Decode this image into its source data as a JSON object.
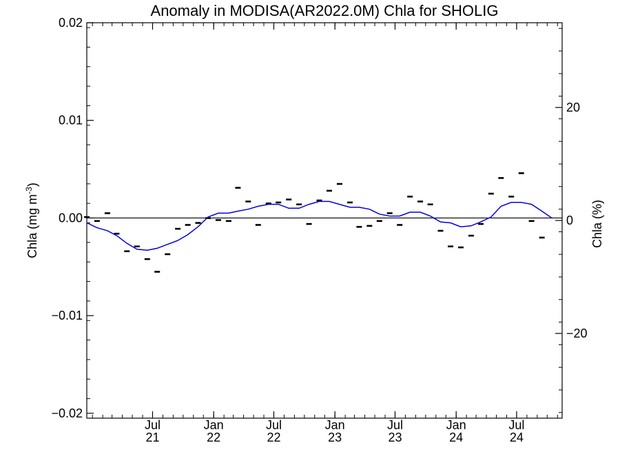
{
  "chart_data": {
    "type": "line+scatter",
    "title": "Anomaly in MODISA(AR2022.0M) Chla for SHOLIG",
    "ylabel_left": {
      "main": "Chla (mg m",
      "sup": "-3",
      "close": ")"
    },
    "ylabel_right": "Chla (%)",
    "x_range": [
      "2020-12-15",
      "2024-11-15"
    ],
    "y_left_range": [
      -0.0205,
      0.02
    ],
    "y_right_range": [
      -35,
      35
    ],
    "grid": false,
    "x_ticks": [
      {
        "date": "2021-07-01",
        "month": "Jul",
        "year": "21"
      },
      {
        "date": "2022-01-01",
        "month": "Jan",
        "year": "22"
      },
      {
        "date": "2022-07-01",
        "month": "Jul",
        "year": "22"
      },
      {
        "date": "2023-01-01",
        "month": "Jan",
        "year": "23"
      },
      {
        "date": "2023-07-01",
        "month": "Jul",
        "year": "23"
      },
      {
        "date": "2024-01-01",
        "month": "Jan",
        "year": "24"
      },
      {
        "date": "2024-07-01",
        "month": "Jul",
        "year": "24"
      }
    ],
    "y_left_ticks": [
      {
        "value": 0.02,
        "label": "0.02"
      },
      {
        "value": 0.01,
        "label": "0.01"
      },
      {
        "value": 0.0,
        "label": "0.00"
      },
      {
        "value": -0.01,
        "label": "−0.01"
      },
      {
        "value": -0.02,
        "label": "−0.02"
      }
    ],
    "y_right_ticks": [
      {
        "value": 20,
        "label": "20"
      },
      {
        "value": 0,
        "label": "0"
      },
      {
        "value": -20,
        "label": "−20"
      }
    ],
    "reference_line": 0,
    "series": [
      {
        "kind": "points",
        "color": "#000000",
        "points": [
          [
            "2020-12-15",
            0.0001
          ],
          [
            "2021-01-15",
            -0.0003
          ],
          [
            "2021-02-15",
            0.0005
          ],
          [
            "2021-03-15",
            -0.0016
          ],
          [
            "2021-04-15",
            -0.0034
          ],
          [
            "2021-05-15",
            -0.0029
          ],
          [
            "2021-06-15",
            -0.0042
          ],
          [
            "2021-07-15",
            -0.0055
          ],
          [
            "2021-08-15",
            -0.0037
          ],
          [
            "2021-09-15",
            -0.0011
          ],
          [
            "2021-10-15",
            -0.0007
          ],
          [
            "2021-11-15",
            -0.0005
          ],
          [
            "2021-12-15",
            0.0
          ],
          [
            "2022-01-15",
            -0.0002
          ],
          [
            "2022-02-15",
            -0.0003
          ],
          [
            "2022-03-15",
            0.0031
          ],
          [
            "2022-04-15",
            0.0017
          ],
          [
            "2022-05-15",
            -0.0007
          ],
          [
            "2022-06-15",
            0.0015
          ],
          [
            "2022-07-15",
            0.0016
          ],
          [
            "2022-08-15",
            0.0019
          ],
          [
            "2022-09-15",
            0.0014
          ],
          [
            "2022-10-15",
            -0.0006
          ],
          [
            "2022-11-15",
            0.0018
          ],
          [
            "2022-12-15",
            0.0028
          ],
          [
            "2023-01-15",
            0.0035
          ],
          [
            "2023-02-15",
            0.0016
          ],
          [
            "2023-03-15",
            -0.0009
          ],
          [
            "2023-04-15",
            -0.0008
          ],
          [
            "2023-05-15",
            -0.0003
          ],
          [
            "2023-06-15",
            0.0005
          ],
          [
            "2023-07-15",
            -0.0007
          ],
          [
            "2023-08-15",
            0.0022
          ],
          [
            "2023-09-15",
            0.0017
          ],
          [
            "2023-10-15",
            0.0014
          ],
          [
            "2023-11-15",
            -0.0013
          ],
          [
            "2023-12-15",
            -0.0029
          ],
          [
            "2024-01-15",
            -0.003
          ],
          [
            "2024-02-15",
            -0.0018
          ],
          [
            "2024-03-15",
            -0.0006
          ],
          [
            "2024-04-15",
            0.0025
          ],
          [
            "2024-05-15",
            0.0041
          ],
          [
            "2024-06-15",
            0.0022
          ],
          [
            "2024-07-15",
            0.0046
          ],
          [
            "2024-08-15",
            -0.0003
          ],
          [
            "2024-09-15",
            -0.002
          ]
        ]
      },
      {
        "kind": "line",
        "color": "#0000dd",
        "points": [
          [
            "2020-12-15",
            -0.0005
          ],
          [
            "2021-01-15",
            -0.001
          ],
          [
            "2021-02-15",
            -0.0013
          ],
          [
            "2021-03-15",
            -0.0018
          ],
          [
            "2021-04-15",
            -0.0026
          ],
          [
            "2021-05-15",
            -0.0032
          ],
          [
            "2021-06-15",
            -0.0033
          ],
          [
            "2021-07-15",
            -0.0031
          ],
          [
            "2021-08-15",
            -0.0027
          ],
          [
            "2021-09-15",
            -0.0023
          ],
          [
            "2021-10-15",
            -0.0017
          ],
          [
            "2021-11-15",
            -0.0009
          ],
          [
            "2021-12-15",
            0.0001
          ],
          [
            "2022-01-15",
            0.0005
          ],
          [
            "2022-02-15",
            0.0005
          ],
          [
            "2022-03-15",
            0.0007
          ],
          [
            "2022-04-15",
            0.0009
          ],
          [
            "2022-05-15",
            0.0012
          ],
          [
            "2022-06-15",
            0.0014
          ],
          [
            "2022-07-15",
            0.0014
          ],
          [
            "2022-08-15",
            0.001
          ],
          [
            "2022-09-15",
            0.001
          ],
          [
            "2022-10-15",
            0.0014
          ],
          [
            "2022-11-15",
            0.0017
          ],
          [
            "2022-12-15",
            0.0017
          ],
          [
            "2023-01-15",
            0.0014
          ],
          [
            "2023-02-15",
            0.0011
          ],
          [
            "2023-03-15",
            0.0011
          ],
          [
            "2023-04-15",
            0.0009
          ],
          [
            "2023-05-15",
            0.0004
          ],
          [
            "2023-06-15",
            0.0002
          ],
          [
            "2023-07-15",
            0.0002
          ],
          [
            "2023-08-15",
            0.0006
          ],
          [
            "2023-09-15",
            0.0006
          ],
          [
            "2023-10-15",
            0.0002
          ],
          [
            "2023-11-15",
            -0.0004
          ],
          [
            "2023-12-15",
            -0.0005
          ],
          [
            "2024-01-15",
            -0.0009
          ],
          [
            "2024-02-15",
            -0.0008
          ],
          [
            "2024-03-15",
            -0.0004
          ],
          [
            "2024-04-15",
            0.0001
          ],
          [
            "2024-05-15",
            0.0012
          ],
          [
            "2024-06-15",
            0.0016
          ],
          [
            "2024-07-15",
            0.0016
          ],
          [
            "2024-08-15",
            0.0014
          ],
          [
            "2024-09-15",
            0.0007
          ],
          [
            "2024-10-15",
            0.0
          ]
        ]
      }
    ]
  }
}
